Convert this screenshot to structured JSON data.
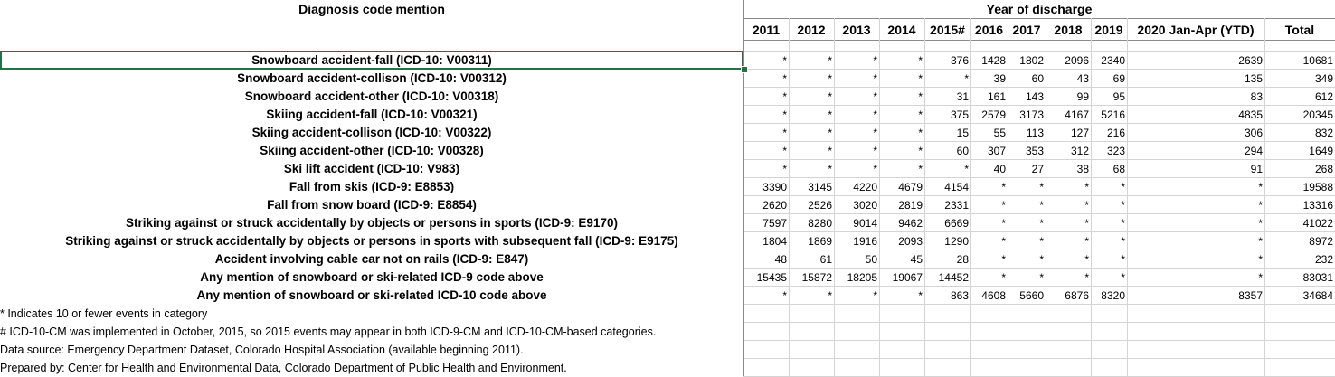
{
  "headers": {
    "diagnosis": "Diagnosis code mention",
    "year_group": "Year of discharge",
    "years": [
      "2011",
      "2012",
      "2013",
      "2014",
      "2015#",
      "2016",
      "2017",
      "2018",
      "2019",
      "2020 Jan-Apr (YTD)",
      "Total"
    ]
  },
  "rows": [
    {
      "label": "Snowboard accident-fall (ICD-10: V00311)",
      "values": [
        "*",
        "*",
        "*",
        "*",
        "376",
        "1428",
        "1802",
        "2096",
        "2340",
        "2639",
        "10681"
      ]
    },
    {
      "label": "Snowboard accident-collison (ICD-10: V00312)",
      "values": [
        "*",
        "*",
        "*",
        "*",
        "*",
        "39",
        "60",
        "43",
        "69",
        "135",
        "349"
      ]
    },
    {
      "label": "Snowboard accident-other (ICD-10: V00318)",
      "values": [
        "*",
        "*",
        "*",
        "*",
        "31",
        "161",
        "143",
        "99",
        "95",
        "83",
        "612"
      ]
    },
    {
      "label": "Skiing accident-fall (ICD-10: V00321)",
      "values": [
        "*",
        "*",
        "*",
        "*",
        "375",
        "2579",
        "3173",
        "4167",
        "5216",
        "4835",
        "20345"
      ]
    },
    {
      "label": "Skiing accident-collison (ICD-10: V00322)",
      "values": [
        "*",
        "*",
        "*",
        "*",
        "15",
        "55",
        "113",
        "127",
        "216",
        "306",
        "832"
      ]
    },
    {
      "label": "Skiing accident-other (ICD-10: V00328)",
      "values": [
        "*",
        "*",
        "*",
        "*",
        "60",
        "307",
        "353",
        "312",
        "323",
        "294",
        "1649"
      ]
    },
    {
      "label": "Ski lift accident (ICD-10: V983)",
      "values": [
        "*",
        "*",
        "*",
        "*",
        "*",
        "40",
        "27",
        "38",
        "68",
        "91",
        "268"
      ]
    },
    {
      "label": "Fall from skis (ICD-9: E8853)",
      "values": [
        "3390",
        "3145",
        "4220",
        "4679",
        "4154",
        "*",
        "*",
        "*",
        "*",
        "*",
        "19588"
      ]
    },
    {
      "label": "Fall from snow board (ICD-9: E8854)",
      "values": [
        "2620",
        "2526",
        "3020",
        "2819",
        "2331",
        "*",
        "*",
        "*",
        "*",
        "*",
        "13316"
      ]
    },
    {
      "label": "Striking against or struck accidentally by objects or persons in sports (ICD-9: E9170)",
      "values": [
        "7597",
        "8280",
        "9014",
        "9462",
        "6669",
        "*",
        "*",
        "*",
        "*",
        "*",
        "41022"
      ]
    },
    {
      "label": "Striking against or struck accidentally by objects or persons in sports with subsequent fall (ICD-9: E9175)",
      "values": [
        "1804",
        "1869",
        "1916",
        "2093",
        "1290",
        "*",
        "*",
        "*",
        "*",
        "*",
        "8972"
      ]
    },
    {
      "label": "Accident involving cable car not on rails (ICD-9: E847)",
      "values": [
        "48",
        "61",
        "50",
        "45",
        "28",
        "*",
        "*",
        "*",
        "*",
        "*",
        "232"
      ]
    },
    {
      "label": "Any mention of snowboard or ski-related ICD-9 code above",
      "values": [
        "15435",
        "15872",
        "18205",
        "19067",
        "14452",
        "*",
        "*",
        "*",
        "*",
        "*",
        "83031"
      ]
    },
    {
      "label": "Any mention of snowboard or ski-related ICD-10 code above",
      "values": [
        "*",
        "*",
        "*",
        "*",
        "863",
        "4608",
        "5660",
        "6876",
        "8320",
        "8357",
        "34684"
      ]
    }
  ],
  "notes": [
    "* Indicates 10 or fewer events in category",
    "# ICD-10-CM was implemented in October, 2015, so 2015 events may appear in both ICD-9-CM and ICD-10-CM-based categories.",
    "Data source: Emergency Department Dataset, Colorado Hospital Association (available beginning 2011).",
    "Prepared by: Center for Health and Environmental Data, Colorado Department of Public Health and Environment."
  ],
  "colors": {
    "selection": "#217346",
    "gridline": "#d4d4d4"
  }
}
